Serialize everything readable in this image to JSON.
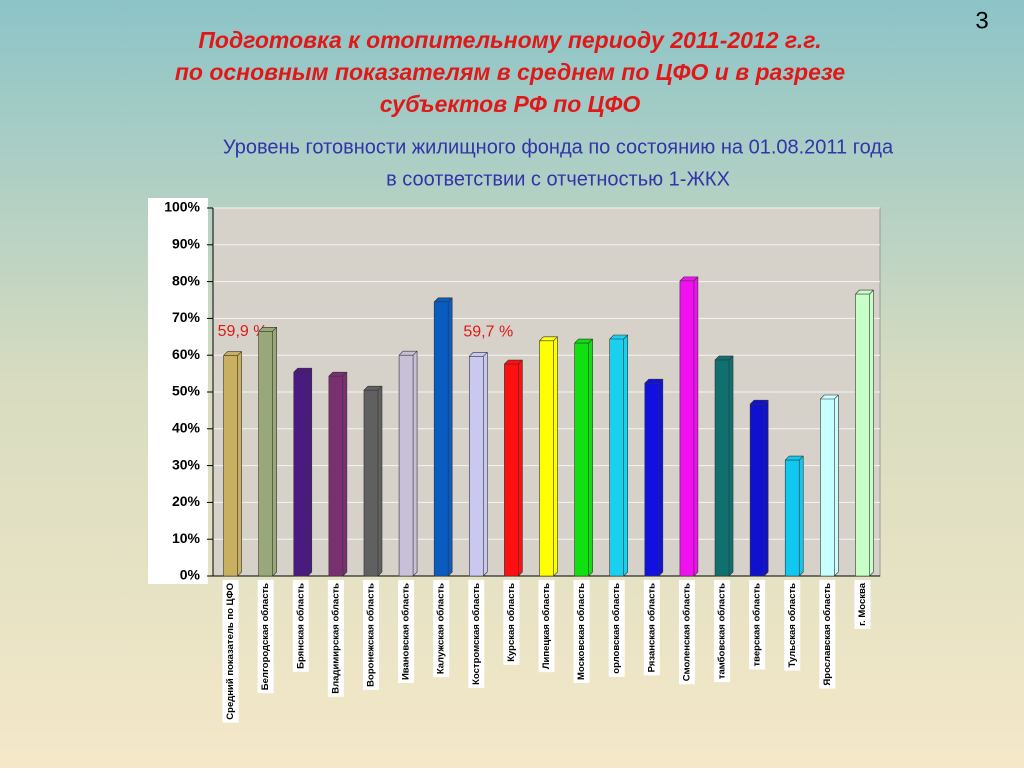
{
  "page_number": "3",
  "chart_data": {
    "type": "bar",
    "title": [
      "Подготовка к отопительному периоду 2011-2012 г.г.",
      "по основным показателям в среднем по ЦФО и в разрезе",
      "субъектов РФ по ЦФО"
    ],
    "subtitle": [
      "Уровень готовности жилищного фонда по состоянию на 01.08.2011 года",
      "в соответствии с  отчетностью 1-ЖКХ"
    ],
    "categories": [
      "Средний показатель по ЦФО",
      "Белгородская область",
      "Брянская область",
      "Владимирская область",
      "Воронежская область",
      "Ивановская область",
      "Калужская область",
      "Костромская область",
      "Курская область",
      "Липецкая область",
      "Московская область",
      "орловская область",
      "Рязанская область",
      "Смоленская область",
      "тамбовская область",
      "тверская область",
      "Тульская область",
      "Ярославская область",
      "г. Москва"
    ],
    "values": [
      59.9,
      66.5,
      55.4,
      54.3,
      50.5,
      60,
      74.5,
      59.7,
      57.6,
      63.9,
      63.3,
      64.4,
      52.4,
      80.2,
      58.7,
      46.7,
      31.5,
      48.1,
      76.6
    ],
    "value_labels": [
      "59,9 %",
      null,
      null,
      null,
      null,
      null,
      null,
      "59,7 %",
      null,
      null,
      null,
      null,
      null,
      null,
      null,
      null,
      null,
      null,
      null
    ],
    "colors": [
      "#c8b060",
      "#98a878",
      "#4a1a80",
      "#7a3070",
      "#606060",
      "#c8c0d8",
      "#0a5cc0",
      "#c8c8f0",
      "#ff1010",
      "#ffff00",
      "#10e010",
      "#1ad0f0",
      "#1010e0",
      "#f010f0",
      "#107070",
      "#1010d0",
      "#10c8f0",
      "#c8ffff",
      "#c8ffc8"
    ],
    "ylim": [
      0,
      100
    ],
    "yticks": [
      {
        "value": 0,
        "label": "0%"
      },
      {
        "value": 10,
        "label": "10%"
      },
      {
        "value": 20,
        "label": "20%"
      },
      {
        "value": 30,
        "label": "30%"
      },
      {
        "value": 40,
        "label": "40%"
      },
      {
        "value": 50,
        "label": "50%"
      },
      {
        "value": 60,
        "label": "60%"
      },
      {
        "value": 70,
        "label": "70%"
      },
      {
        "value": 80,
        "label": "80%"
      },
      {
        "value": 90,
        "label": "90%"
      },
      {
        "value": 100,
        "label": "100%"
      }
    ],
    "grid": true
  }
}
